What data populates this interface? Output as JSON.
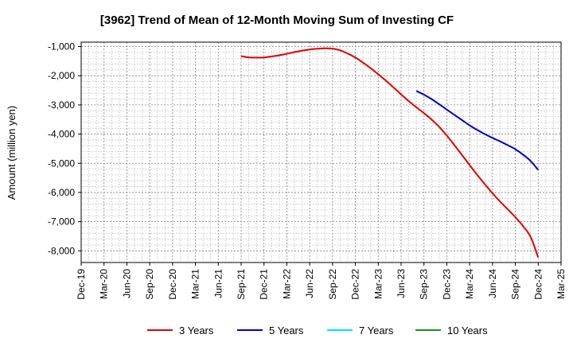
{
  "chart_data": {
    "type": "line",
    "title": "[3962]  Trend of Mean of 12-Month Moving Sum of Investing CF",
    "xlabel": "",
    "ylabel": "Amount (million yen)",
    "x_ticks": [
      "Dec-19",
      "Mar-20",
      "Jun-20",
      "Sep-20",
      "Dec-20",
      "Mar-21",
      "Jun-21",
      "Sep-21",
      "Dec-21",
      "Mar-22",
      "Jun-22",
      "Sep-22",
      "Dec-22",
      "Mar-23",
      "Jun-23",
      "Sep-23",
      "Dec-23",
      "Mar-24",
      "Jun-24",
      "Sep-24",
      "Dec-24",
      "Mar-25"
    ],
    "y_ticks": [
      -1000,
      -2000,
      -3000,
      -4000,
      -5000,
      -6000,
      -7000,
      -8000
    ],
    "y_tick_labels": [
      "-1,000",
      "-2,000",
      "-3,000",
      "-4,000",
      "-5,000",
      "-6,000",
      "-7,000",
      "-8,000"
    ],
    "ylim": [
      -8400,
      -850
    ],
    "grid": true,
    "legend_position": "bottom",
    "series": [
      {
        "name": "3 Years",
        "color": "#e00000",
        "points": [
          [
            "Sep-21",
            -1330
          ],
          [
            "Oct-21",
            -1370
          ],
          [
            "Nov-21",
            -1380
          ],
          [
            "Dec-21",
            -1375
          ],
          [
            "Jan-22",
            -1340
          ],
          [
            "Feb-22",
            -1300
          ],
          [
            "Mar-22",
            -1250
          ],
          [
            "Apr-22",
            -1190
          ],
          [
            "May-22",
            -1140
          ],
          [
            "Jun-22",
            -1100
          ],
          [
            "Jul-22",
            -1075
          ],
          [
            "Aug-22",
            -1060
          ],
          [
            "Sep-22",
            -1070
          ],
          [
            "Oct-22",
            -1130
          ],
          [
            "Nov-22",
            -1240
          ],
          [
            "Dec-22",
            -1380
          ],
          [
            "Jan-23",
            -1550
          ],
          [
            "Feb-23",
            -1740
          ],
          [
            "Mar-23",
            -1950
          ],
          [
            "Apr-23",
            -2170
          ],
          [
            "May-23",
            -2400
          ],
          [
            "Jun-23",
            -2640
          ],
          [
            "Jul-23",
            -2870
          ],
          [
            "Aug-23",
            -3080
          ],
          [
            "Sep-23",
            -3280
          ],
          [
            "Oct-23",
            -3500
          ],
          [
            "Nov-23",
            -3750
          ],
          [
            "Dec-23",
            -4050
          ],
          [
            "Jan-24",
            -4380
          ],
          [
            "Feb-24",
            -4720
          ],
          [
            "Mar-24",
            -5060
          ],
          [
            "Apr-24",
            -5400
          ],
          [
            "May-24",
            -5720
          ],
          [
            "Jun-24",
            -6030
          ],
          [
            "Jul-24",
            -6310
          ],
          [
            "Aug-24",
            -6580
          ],
          [
            "Sep-24",
            -6850
          ],
          [
            "Oct-24",
            -7150
          ],
          [
            "Nov-24",
            -7520
          ],
          [
            "Dec-24",
            -8230
          ]
        ]
      },
      {
        "name": "5 Years",
        "color": "#0000cc",
        "points": [
          [
            "Aug-23",
            -2520
          ],
          [
            "Sep-23",
            -2650
          ],
          [
            "Oct-23",
            -2800
          ],
          [
            "Nov-23",
            -2980
          ],
          [
            "Dec-23",
            -3160
          ],
          [
            "Jan-24",
            -3340
          ],
          [
            "Feb-24",
            -3520
          ],
          [
            "Mar-24",
            -3700
          ],
          [
            "Apr-24",
            -3860
          ],
          [
            "May-24",
            -4000
          ],
          [
            "Jun-24",
            -4130
          ],
          [
            "Jul-24",
            -4250
          ],
          [
            "Aug-24",
            -4380
          ],
          [
            "Sep-24",
            -4520
          ],
          [
            "Oct-24",
            -4700
          ],
          [
            "Nov-24",
            -4920
          ],
          [
            "Dec-24",
            -5230
          ]
        ]
      },
      {
        "name": "7 Years",
        "color": "#00e5ee",
        "points": []
      },
      {
        "name": "10 Years",
        "color": "#228b22",
        "points": []
      }
    ]
  }
}
